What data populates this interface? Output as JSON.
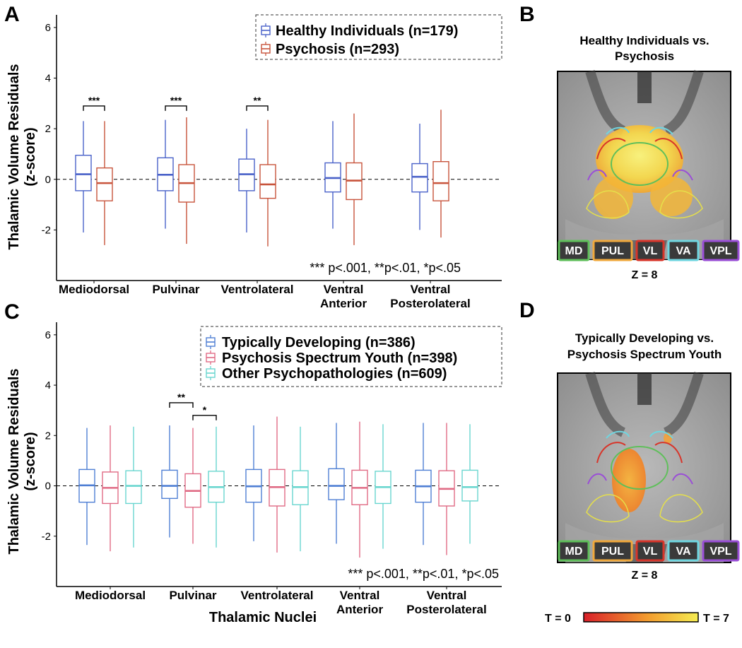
{
  "colors": {
    "healthy": "#4a62c9",
    "psychosis": "#c8543c",
    "typical": "#4f7fd4",
    "pspec": "#e06b85",
    "other": "#6ad6cf"
  },
  "icons": [
    "legend-box-icon"
  ],
  "chart_data": [
    {
      "panel": "A",
      "type": "box",
      "ylabel_lines": [
        "Thalamic Volume Residuals",
        "(z-score)"
      ],
      "ylim": [
        -4,
        6.5
      ],
      "yticks": [
        "6",
        "4",
        "2",
        "0",
        "-2"
      ],
      "ytick_values": [
        6,
        4,
        2,
        0,
        -2
      ],
      "categories": [
        [
          "Mediodorsal"
        ],
        [
          "Pulvinar"
        ],
        [
          "Ventrolateral"
        ],
        [
          "Ventral",
          "Anterior"
        ],
        [
          "Ventral",
          "Posterolateral"
        ]
      ],
      "legend": [
        "Healthy Individuals (n=179)",
        "Psychosis (n=293)"
      ],
      "series": [
        {
          "name": "Healthy Individuals (n=179)",
          "color_key": "healthy",
          "boxes": [
            {
              "min": -2.1,
              "q1": -0.45,
              "median": 0.2,
              "q3": 0.95,
              "max": 2.3
            },
            {
              "min": -1.95,
              "q1": -0.45,
              "median": 0.18,
              "q3": 0.85,
              "max": 2.35
            },
            {
              "min": -2.1,
              "q1": -0.45,
              "median": 0.2,
              "q3": 0.8,
              "max": 2.0
            },
            {
              "min": -1.95,
              "q1": -0.5,
              "median": 0.05,
              "q3": 0.65,
              "max": 2.3
            },
            {
              "min": -2.0,
              "q1": -0.5,
              "median": 0.1,
              "q3": 0.62,
              "max": 2.2
            }
          ]
        },
        {
          "name": "Psychosis (n=293)",
          "color_key": "psychosis",
          "boxes": [
            {
              "min": -2.6,
              "q1": -0.85,
              "median": -0.15,
              "q3": 0.45,
              "max": 2.3
            },
            {
              "min": -2.55,
              "q1": -0.9,
              "median": -0.15,
              "q3": 0.58,
              "max": 2.45
            },
            {
              "min": -2.65,
              "q1": -0.75,
              "median": -0.2,
              "q3": 0.58,
              "max": 2.35
            },
            {
              "min": -2.6,
              "q1": -0.8,
              "median": -0.05,
              "q3": 0.65,
              "max": 2.6
            },
            {
              "min": -2.3,
              "q1": -0.85,
              "median": -0.15,
              "q3": 0.7,
              "max": 2.75
            }
          ]
        }
      ],
      "significance": [
        {
          "category": 0,
          "from_series": 0,
          "to_series": 1,
          "label": "***",
          "y": 2.9
        },
        {
          "category": 1,
          "from_series": 0,
          "to_series": 1,
          "label": "***",
          "y": 2.9
        },
        {
          "category": 2,
          "from_series": 0,
          "to_series": 1,
          "label": "**",
          "y": 2.9
        }
      ],
      "note": "*** p<.001, **p<.01, *p<.05"
    },
    {
      "panel": "C",
      "type": "box",
      "ylabel_lines": [
        "Thalamic Volume Residuals",
        "(z-score)"
      ],
      "xlabel": "Thalamic Nuclei",
      "ylim": [
        -4,
        6.5
      ],
      "yticks": [
        "6",
        "4",
        "2",
        "0",
        "-2"
      ],
      "ytick_values": [
        6,
        4,
        2,
        0,
        -2
      ],
      "categories": [
        [
          "Mediodorsal"
        ],
        [
          "Pulvinar"
        ],
        [
          "Ventrolateral"
        ],
        [
          "Ventral",
          "Anterior"
        ],
        [
          "Ventral",
          "Posterolateral"
        ]
      ],
      "legend": [
        "Typically Developing (n=386)",
        "Psychosis Spectrum Youth (n=398)",
        "Other Psychopathologies (n=609)"
      ],
      "series": [
        {
          "name": "Typically Developing (n=386)",
          "color_key": "typical",
          "boxes": [
            {
              "min": -2.35,
              "q1": -0.65,
              "median": 0.02,
              "q3": 0.65,
              "max": 2.3
            },
            {
              "min": -2.05,
              "q1": -0.5,
              "median": 0.0,
              "q3": 0.62,
              "max": 2.4
            },
            {
              "min": -2.2,
              "q1": -0.65,
              "median": -0.02,
              "q3": 0.65,
              "max": 2.4
            },
            {
              "min": -2.3,
              "q1": -0.55,
              "median": 0.0,
              "q3": 0.68,
              "max": 2.5
            },
            {
              "min": -2.35,
              "q1": -0.65,
              "median": -0.02,
              "q3": 0.62,
              "max": 2.5
            }
          ]
        },
        {
          "name": "Psychosis Spectrum Youth (n=398)",
          "color_key": "pspec",
          "boxes": [
            {
              "min": -2.6,
              "q1": -0.7,
              "median": -0.08,
              "q3": 0.55,
              "max": 2.4
            },
            {
              "min": -2.3,
              "q1": -0.85,
              "median": -0.2,
              "q3": 0.48,
              "max": 2.3
            },
            {
              "min": -2.65,
              "q1": -0.8,
              "median": -0.05,
              "q3": 0.65,
              "max": 2.75
            },
            {
              "min": -2.85,
              "q1": -0.75,
              "median": -0.08,
              "q3": 0.62,
              "max": 2.55
            },
            {
              "min": -2.75,
              "q1": -0.8,
              "median": -0.12,
              "q3": 0.6,
              "max": 2.5
            }
          ]
        },
        {
          "name": "Other Psychopathologies (n=609)",
          "color_key": "other",
          "boxes": [
            {
              "min": -2.45,
              "q1": -0.7,
              "median": 0.0,
              "q3": 0.6,
              "max": 2.35
            },
            {
              "min": -2.45,
              "q1": -0.65,
              "median": -0.05,
              "q3": 0.58,
              "max": 2.35
            },
            {
              "min": -2.6,
              "q1": -0.75,
              "median": -0.05,
              "q3": 0.6,
              "max": 2.35
            },
            {
              "min": -2.5,
              "q1": -0.7,
              "median": -0.05,
              "q3": 0.58,
              "max": 2.45
            },
            {
              "min": -2.3,
              "q1": -0.6,
              "median": -0.05,
              "q3": 0.62,
              "max": 2.45
            }
          ]
        }
      ],
      "significance": [
        {
          "category": 1,
          "from_series": 0,
          "to_series": 1,
          "label": "**",
          "y": 3.3
        },
        {
          "category": 1,
          "from_series": 1,
          "to_series": 2,
          "label": "*",
          "y": 2.8
        }
      ],
      "note": "*** p<.001, **p<.01, *p<.05"
    }
  ],
  "panels": {
    "A": {
      "letter": "A"
    },
    "B": {
      "letter": "B",
      "title_lines": [
        "Healthy Individuals vs.",
        "Psychosis"
      ],
      "z_label": "Z = 8"
    },
    "C": {
      "letter": "C"
    },
    "D": {
      "letter": "D",
      "title_lines": [
        "Typically Developing vs.",
        "Psychosis Spectrum Youth"
      ],
      "z_label": "Z = 8"
    }
  },
  "roi_legend": [
    {
      "label": "MD",
      "color": "#5fbf5a"
    },
    {
      "label": "PUL",
      "color": "#f0a83c"
    },
    {
      "label": "VL",
      "color": "#d8352a"
    },
    {
      "label": "VA",
      "color": "#6fd6e0"
    },
    {
      "label": "VPL",
      "color": "#9a4fd6"
    }
  ],
  "colorbar": {
    "min_label": "T = 0",
    "max_label": "T = 7",
    "from": "#d8202a",
    "to": "#f5ec52"
  }
}
